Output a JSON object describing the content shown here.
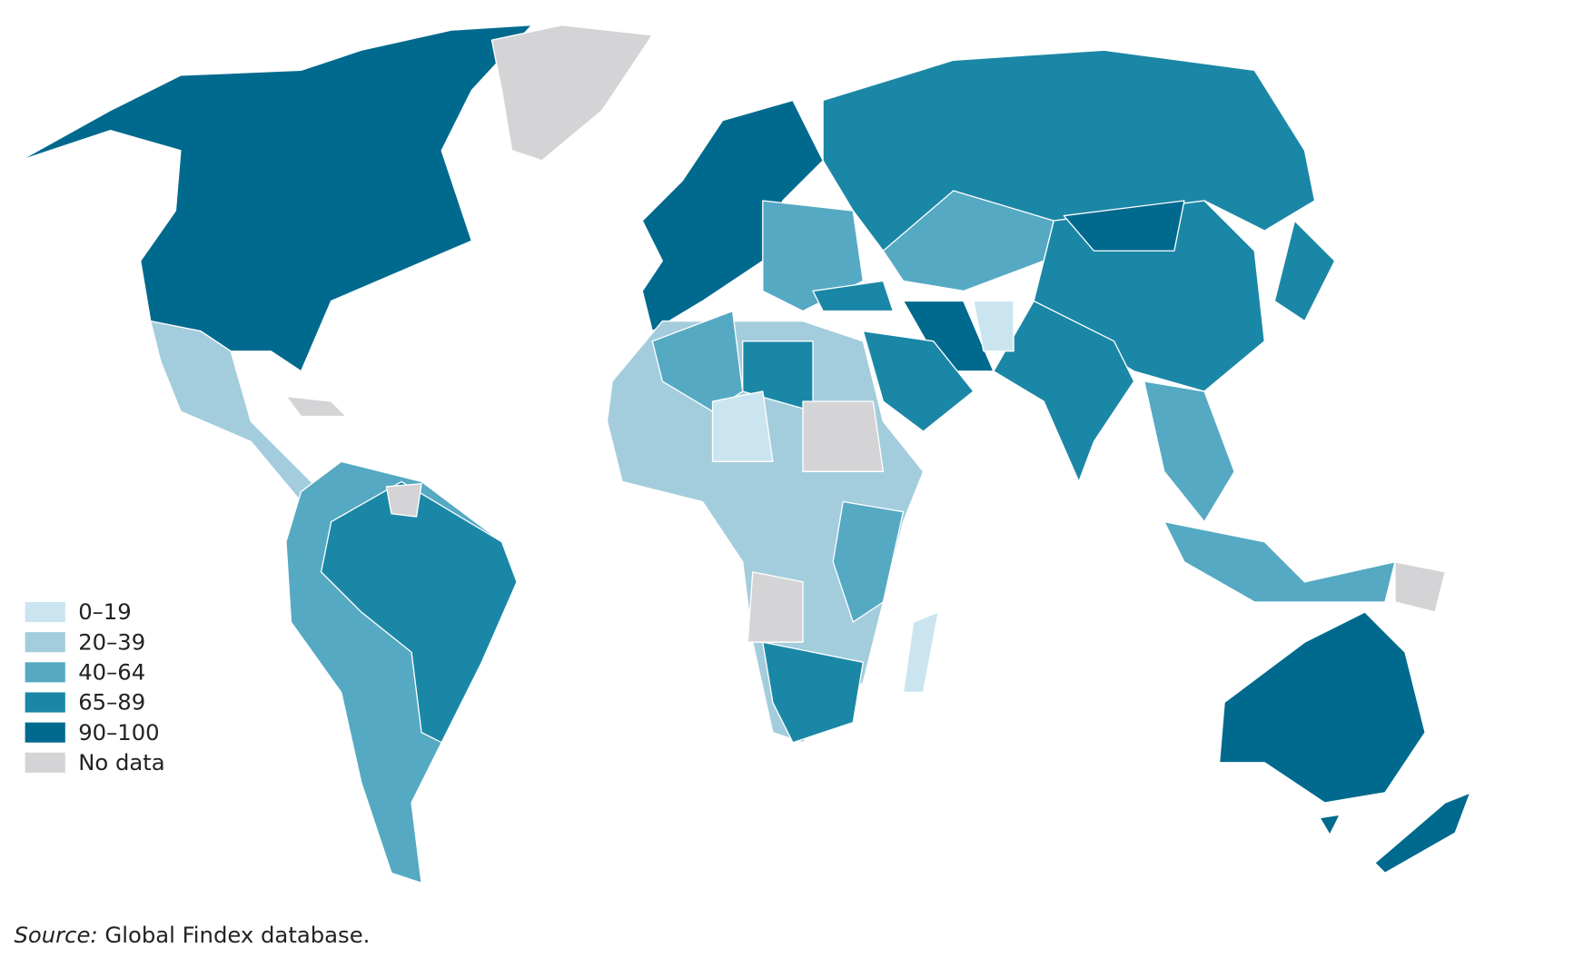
{
  "legend": {
    "items": [
      {
        "label": "0–19",
        "color": "#cbe5f0"
      },
      {
        "label": "20–39",
        "color": "#a3cddd"
      },
      {
        "label": "40–64",
        "color": "#55a9c3"
      },
      {
        "label": "65–89",
        "color": "#1b87a6"
      },
      {
        "label": "90–100",
        "color": "#006a8e"
      },
      {
        "label": "No data",
        "color": "#d4d4d6"
      }
    ]
  },
  "source": {
    "prefix": "Source:",
    "text": "Global Findex database."
  }
}
